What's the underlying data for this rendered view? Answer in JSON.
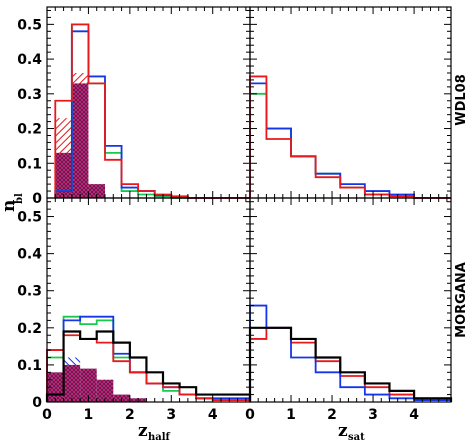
{
  "colors": {
    "red": "#e8191c",
    "green": "#19c94b",
    "blue": "#1436e6",
    "black": "#000000",
    "magenta": "#d6268c",
    "hatch_dark": "#5a1a40"
  },
  "labels": {
    "ylabel_main": "n",
    "ylabel_sub": "bl",
    "xlabel_left_main": "z",
    "xlabel_left_sub": "half",
    "xlabel_right_main": "z",
    "xlabel_right_sub": "sat",
    "row_top": "WDL08",
    "row_bottom": "MORGANA"
  },
  "chart_data": [
    {
      "panel": "top-left",
      "type": "histogram",
      "xlabel": "",
      "ylim": [
        0,
        0.55
      ],
      "xlim": [
        0,
        4.9
      ],
      "yticks": [
        "0",
        "0.1",
        "0.2",
        "0.3",
        "0.4",
        "0.5"
      ],
      "bin_edges": [
        0.2,
        0.6,
        1.0,
        1.4,
        1.8,
        2.2,
        2.6,
        3.0,
        3.4,
        3.8,
        4.2,
        4.9
      ],
      "series": [
        {
          "color": "green",
          "values": [
            0.02,
            0.5,
            0.33,
            0.13,
            0.02,
            0.01,
            0.005,
            0.0,
            0.0,
            0.0,
            0.0
          ]
        },
        {
          "color": "blue",
          "values": [
            0.02,
            0.48,
            0.35,
            0.15,
            0.03,
            0.02,
            0.008,
            0.003,
            0.0,
            0.0,
            0.0
          ]
        },
        {
          "color": "red",
          "values": [
            0.28,
            0.5,
            0.33,
            0.11,
            0.04,
            0.02,
            0.01,
            0.005,
            0.0,
            0.0,
            0.0
          ]
        }
      ],
      "hatched": [
        {
          "color": "red",
          "values": [
            0.23,
            0.36,
            0.0
          ]
        },
        {
          "color": "magenta",
          "values": [
            0.13,
            0.33,
            0.04
          ]
        }
      ]
    },
    {
      "panel": "top-right",
      "type": "histogram",
      "ylim": [
        0,
        0.55
      ],
      "xlim": [
        0,
        4.9
      ],
      "bin_edges": [
        0.0,
        0.4,
        1.0,
        1.6,
        2.2,
        2.8,
        3.4,
        4.0,
        4.9
      ],
      "series": [
        {
          "color": "green",
          "values": [
            0.3,
            0.2,
            0.12,
            0.07,
            0.03,
            0.01,
            0.005,
            0.0
          ]
        },
        {
          "color": "blue",
          "values": [
            0.33,
            0.2,
            0.12,
            0.07,
            0.04,
            0.02,
            0.01,
            0.0
          ]
        },
        {
          "color": "red",
          "values": [
            0.35,
            0.17,
            0.12,
            0.06,
            0.03,
            0.01,
            0.005,
            0.0
          ]
        }
      ]
    },
    {
      "panel": "bottom-left",
      "type": "histogram",
      "xlabel": "z_half",
      "ylim": [
        0,
        0.55
      ],
      "xlim": [
        0,
        4.9
      ],
      "yticks": [
        "0",
        "0.1",
        "0.2",
        "0.3",
        "0.4",
        "0.5"
      ],
      "xticks": [
        "0",
        "1",
        "2",
        "3",
        "4"
      ],
      "bin_edges": [
        0.0,
        0.4,
        0.8,
        1.2,
        1.6,
        2.0,
        2.4,
        2.8,
        3.2,
        3.6,
        4.0,
        4.9
      ],
      "series": [
        {
          "color": "green",
          "values": [
            0.12,
            0.23,
            0.21,
            0.22,
            0.12,
            0.08,
            0.05,
            0.03,
            0.02,
            0.01,
            0.005
          ]
        },
        {
          "color": "blue",
          "values": [
            0.14,
            0.22,
            0.23,
            0.23,
            0.13,
            0.08,
            0.05,
            0.04,
            0.02,
            0.01,
            0.01
          ]
        },
        {
          "color": "red",
          "values": [
            0.14,
            0.18,
            0.17,
            0.16,
            0.11,
            0.08,
            0.05,
            0.04,
            0.02,
            0.01,
            0.005
          ]
        },
        {
          "color": "black",
          "values": [
            0.02,
            0.19,
            0.17,
            0.19,
            0.16,
            0.12,
            0.08,
            0.05,
            0.04,
            0.02,
            0.02
          ]
        }
      ],
      "hatched": [
        {
          "color": "blue",
          "values": [
            0.06,
            0.12,
            0.07,
            0.06,
            0.02,
            0.01,
            0.0,
            0.0,
            0.0,
            0.0,
            0.0
          ]
        },
        {
          "color": "magenta",
          "values": [
            0.08,
            0.1,
            0.09,
            0.06,
            0.02,
            0.01,
            0.0,
            0.0,
            0.0,
            0.0,
            0.0
          ]
        }
      ]
    },
    {
      "panel": "bottom-right",
      "type": "histogram",
      "xlabel": "z_sat",
      "ylim": [
        0,
        0.55
      ],
      "xlim": [
        0,
        4.9
      ],
      "xticks": [
        "0",
        "1",
        "2",
        "3",
        "4"
      ],
      "bin_edges": [
        0.0,
        0.4,
        1.0,
        1.6,
        2.2,
        2.8,
        3.4,
        4.0,
        4.9
      ],
      "series": [
        {
          "color": "red",
          "values": [
            0.17,
            0.2,
            0.16,
            0.11,
            0.07,
            0.04,
            0.02,
            0.01
          ]
        },
        {
          "color": "blue",
          "values": [
            0.26,
            0.2,
            0.12,
            0.08,
            0.04,
            0.02,
            0.01,
            0.005
          ]
        },
        {
          "color": "black",
          "values": [
            0.2,
            0.2,
            0.17,
            0.12,
            0.08,
            0.05,
            0.03,
            0.01
          ]
        }
      ]
    }
  ]
}
